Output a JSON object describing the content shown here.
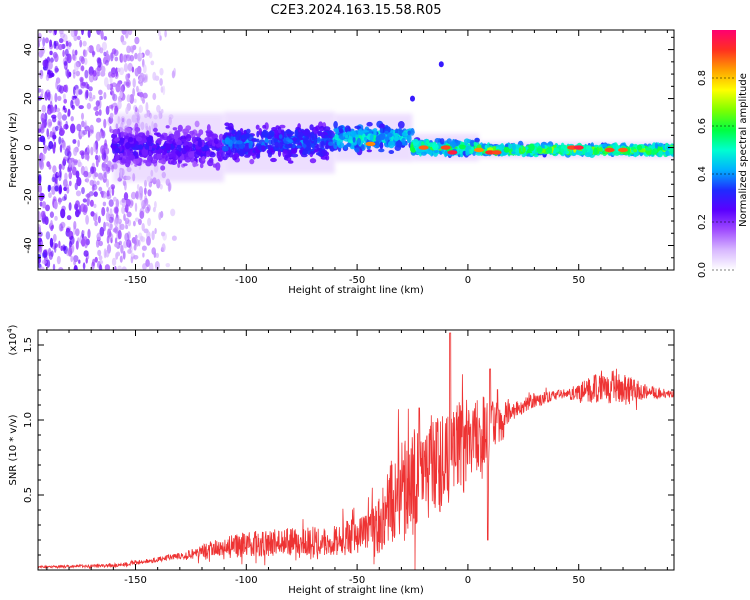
{
  "title": "C2E3.2024.163.15.58.R05",
  "chart_data": [
    {
      "type": "heatmap",
      "xlabel": "Height of straight line (km)",
      "ylabel": "Frequency (Hz)",
      "xlim": [
        -194,
        93
      ],
      "ylim": [
        -50,
        48
      ],
      "xticks": [
        -150,
        -100,
        -50,
        0,
        50
      ],
      "yticks": [
        -40,
        -20,
        0,
        20,
        40
      ],
      "colorbar": {
        "label": "Normalized spectral amplitude",
        "range": [
          0,
          1
        ],
        "ticks": [
          "0.0",
          "0.2",
          "0.4",
          "0.6",
          "0.8"
        ],
        "colors": [
          "#ffffff",
          "#d8b8ff",
          "#a04cff",
          "#5a00ff",
          "#1f2bff",
          "#00b0ff",
          "#00ffd0",
          "#00ff40",
          "#80ff00",
          "#ffff00",
          "#ffa000",
          "#ff3020",
          "#ff0070"
        ]
      },
      "scatter_region": {
        "x": [
          -194,
          -130
        ],
        "y": [
          -50,
          48
        ],
        "amplitude": 0.3
      },
      "band_segments": [
        {
          "x": [
            -160,
            -110
          ],
          "center_hz": 0,
          "halfwidth_hz": 10,
          "amplitude": 0.32
        },
        {
          "x": [
            -110,
            -60
          ],
          "center_hz": 2,
          "halfwidth_hz": 9,
          "amplitude": 0.42
        },
        {
          "x": [
            -60,
            -25
          ],
          "center_hz": 4,
          "halfwidth_hz": 7,
          "amplitude": 0.55
        },
        {
          "x": [
            -25,
            5
          ],
          "center_hz": 0,
          "halfwidth_hz": 4,
          "amplitude": 0.65
        },
        {
          "x": [
            5,
            93
          ],
          "center_hz": -1,
          "halfwidth_hz": 2.5,
          "amplitude": 0.72
        }
      ],
      "hot_spots": [
        {
          "x": -44,
          "y": 1.5,
          "amplitude": 0.85
        },
        {
          "x": -20,
          "y": 0,
          "amplitude": 0.88
        },
        {
          "x": -10,
          "y": 0,
          "amplitude": 0.9
        },
        {
          "x": -7,
          "y": -2,
          "amplitude": 0.95
        },
        {
          "x": 5,
          "y": -1,
          "amplitude": 0.85
        },
        {
          "x": 10,
          "y": -2,
          "amplitude": 0.92
        },
        {
          "x": 13,
          "y": -2,
          "amplitude": 0.9
        },
        {
          "x": 47,
          "y": 0,
          "amplitude": 0.9
        },
        {
          "x": 50,
          "y": 0,
          "amplitude": 0.95
        },
        {
          "x": 64,
          "y": -1,
          "amplitude": 0.9
        },
        {
          "x": 70,
          "y": -1,
          "amplitude": 0.88
        }
      ],
      "outliers": [
        {
          "x": -12,
          "y": 34,
          "amplitude": 0.3
        },
        {
          "x": -25,
          "y": 20,
          "amplitude": 0.3
        }
      ]
    },
    {
      "type": "line",
      "xlabel": "Height of straight line (km)",
      "ylabel": "SNR (10 * v/v)",
      "multiplier": "(x10",
      "multiplier_exp": "4",
      "xlim": [
        -194,
        93
      ],
      "ylim": [
        0,
        1.6
      ],
      "xticks": [
        -150,
        -100,
        -50,
        0,
        50
      ],
      "yticks": [
        "0.5",
        "1.0",
        "1.5"
      ],
      "color": "#ee3333",
      "envelope": [
        {
          "x": -194,
          "y": 0.02
        },
        {
          "x": -160,
          "y": 0.03
        },
        {
          "x": -140,
          "y": 0.07
        },
        {
          "x": -120,
          "y": 0.12
        },
        {
          "x": -100,
          "y": 0.17
        },
        {
          "x": -80,
          "y": 0.19
        },
        {
          "x": -60,
          "y": 0.2
        },
        {
          "x": -50,
          "y": 0.22
        },
        {
          "x": -40,
          "y": 0.28
        },
        {
          "x": -35,
          "y": 0.45
        },
        {
          "x": -25,
          "y": 0.58
        },
        {
          "x": -15,
          "y": 0.7
        },
        {
          "x": 0,
          "y": 0.85
        },
        {
          "x": 10,
          "y": 0.95
        },
        {
          "x": 20,
          "y": 1.06
        },
        {
          "x": 30,
          "y": 1.13
        },
        {
          "x": 40,
          "y": 1.17
        },
        {
          "x": 50,
          "y": 1.18
        },
        {
          "x": 65,
          "y": 1.22
        },
        {
          "x": 80,
          "y": 1.19
        },
        {
          "x": 93,
          "y": 1.17
        }
      ],
      "noise": [
        {
          "x": -194,
          "y": 0.005
        },
        {
          "x": -130,
          "y": 0.02
        },
        {
          "x": -110,
          "y": 0.08
        },
        {
          "x": -60,
          "y": 0.1
        },
        {
          "x": -45,
          "y": 0.15
        },
        {
          "x": -30,
          "y": 0.35
        },
        {
          "x": -10,
          "y": 0.35
        },
        {
          "x": 10,
          "y": 0.3
        },
        {
          "x": 20,
          "y": 0.06
        },
        {
          "x": 45,
          "y": 0.03
        },
        {
          "x": 55,
          "y": 0.1
        },
        {
          "x": 70,
          "y": 0.12
        },
        {
          "x": 80,
          "y": 0.05
        },
        {
          "x": 93,
          "y": 0.02
        }
      ],
      "peaks": [
        {
          "x": -8,
          "y": 1.58
        },
        {
          "x": 10,
          "y": 1.34
        },
        {
          "x": -22,
          "y": 1.08
        },
        {
          "x": 9,
          "y": 0.2
        }
      ]
    }
  ]
}
